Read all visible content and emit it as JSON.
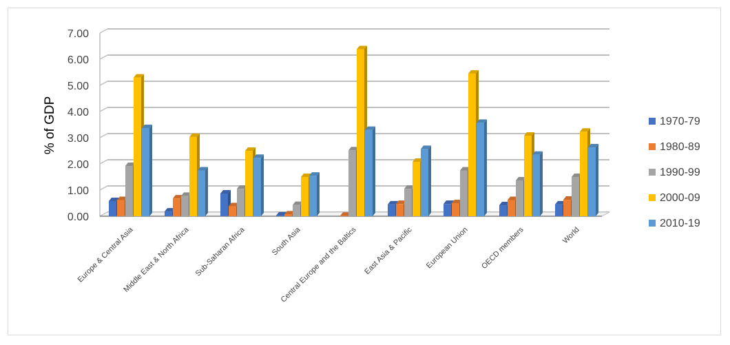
{
  "chart_data": {
    "type": "bar",
    "title": "",
    "xlabel": "",
    "ylabel": "% of GDP",
    "ylim": [
      0,
      7
    ],
    "yticks": [
      "0.00",
      "1.00",
      "2.00",
      "3.00",
      "4.00",
      "5.00",
      "6.00",
      "7.00"
    ],
    "grid": true,
    "legend_position": "right",
    "categories": [
      "Europe & Central Asia",
      "Middle East & North Africa",
      "Sub-Saharan Africa",
      "South Asia",
      "Central Europe and the Baltics",
      "East Asia & Pacific",
      "European Union",
      "OECD members",
      "World"
    ],
    "series": [
      {
        "name": "1970-79",
        "color": "#4472c4",
        "values": [
          0.58,
          0.18,
          0.87,
          0.03,
          null,
          0.45,
          0.47,
          0.42,
          0.45
        ]
      },
      {
        "name": "1980-89",
        "color": "#ed7d31",
        "values": [
          0.62,
          0.68,
          0.38,
          0.07,
          0.0,
          0.47,
          0.5,
          0.62,
          0.63
        ]
      },
      {
        "name": "1990-99",
        "color": "#a5a5a5",
        "values": [
          1.92,
          0.78,
          1.05,
          0.43,
          2.52,
          1.05,
          1.75,
          1.37,
          1.5
        ]
      },
      {
        "name": "2000-09",
        "color": "#ffc000",
        "values": [
          5.3,
          3.03,
          2.5,
          1.5,
          6.38,
          2.08,
          5.45,
          3.08,
          3.23
        ]
      },
      {
        "name": "2010-19",
        "color": "#5b9bd5",
        "values": [
          3.37,
          1.75,
          2.23,
          1.55,
          3.3,
          2.57,
          3.57,
          2.35,
          2.63
        ]
      }
    ]
  }
}
